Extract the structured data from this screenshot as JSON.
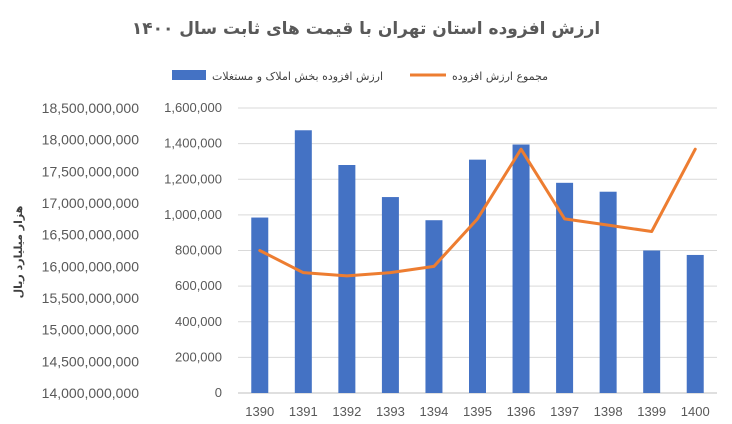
{
  "chart_data": {
    "type": "bar",
    "title": "ارزش افزوده استان تهران با قیمت های ثابت سال ۱۴۰۰",
    "ylabel": "هزار میلیارد ریال",
    "categories": [
      "1390",
      "1391",
      "1392",
      "1393",
      "1394",
      "1395",
      "1396",
      "1397",
      "1398",
      "1399",
      "1400"
    ],
    "series": [
      {
        "name": "ارزش افزوده بخش املاک و مستغلات",
        "type": "bar",
        "axis": "right",
        "color": "#4472C4",
        "values": [
          985000,
          1475000,
          1280000,
          1100000,
          970000,
          1310000,
          1395000,
          1180000,
          1130000,
          800000,
          775000
        ]
      },
      {
        "name": "مجموع ارزش افزوده",
        "type": "line",
        "axis": "left",
        "color": "#ED7D31",
        "values": [
          16250000000,
          15900000000,
          15850000000,
          15900000000,
          16000000000,
          16750000000,
          17850000000,
          16750000000,
          16650000000,
          16550000000,
          17850000000
        ]
      }
    ],
    "y_right": {
      "lim": [
        0,
        1600000
      ],
      "ticks": [
        "0",
        "200,000",
        "400,000",
        "600,000",
        "800,000",
        "1,000,000",
        "1,200,000",
        "1,400,000",
        "1,600,000"
      ]
    },
    "y_left": {
      "lim": [
        14000000000,
        18500000000
      ],
      "ticks": [
        "14,000,000,000",
        "14,500,000,000",
        "15,000,000,000",
        "15,500,000,000",
        "16,000,000,000",
        "16,500,000,000",
        "17,000,000,000",
        "17,500,000,000",
        "18,000,000,000",
        "18,500,000,000"
      ]
    },
    "legend_position": "top",
    "grid": true
  }
}
